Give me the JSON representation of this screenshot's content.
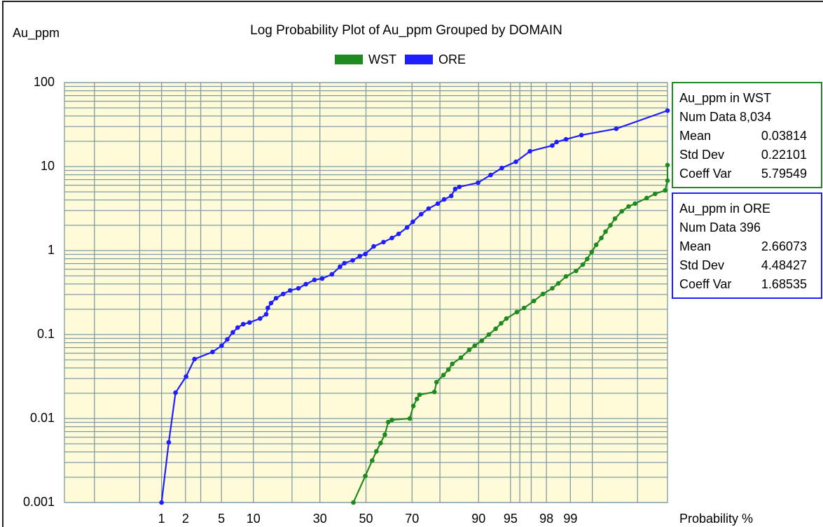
{
  "chart_data": {
    "type": "line",
    "title": "Log Probability Plot of Au_ppm Grouped by DOMAIN",
    "y_label": "Au_ppm",
    "x_label": "Probability %",
    "x_scale": "probability",
    "y_scale": "log",
    "grid": true,
    "legend": "top",
    "plot_background": "#fffbd8",
    "xlim": [
      0.03,
      99.97
    ],
    "ylim": [
      0.001,
      100
    ],
    "xticks": [
      1,
      2,
      5,
      10,
      30,
      50,
      70,
      90,
      95,
      98,
      99
    ],
    "x_grid": [
      0.1,
      0.5,
      1,
      2,
      3,
      5,
      10,
      20,
      30,
      50,
      70,
      80,
      90,
      95,
      96,
      97,
      98,
      99,
      99.5,
      99.9
    ],
    "yticks": [
      0.001,
      0.01,
      0.1,
      1,
      10,
      100
    ],
    "y_minor_grid": [
      0.002,
      0.003,
      0.004,
      0.005,
      0.006,
      0.007,
      0.008,
      0.009,
      0.02,
      0.03,
      0.04,
      0.05,
      0.06,
      0.07,
      0.08,
      0.09,
      0.2,
      0.3,
      0.4,
      0.5,
      0.6,
      0.7,
      0.8,
      0.9,
      2,
      3,
      4,
      5,
      6,
      7,
      8,
      9,
      20,
      30,
      40,
      50,
      60,
      70,
      80,
      90
    ],
    "series": [
      {
        "name": "WST",
        "color": "#1f8a1f",
        "x": [
          44.3,
          49.7,
          52.8,
          54.7,
          56.6,
          58.5,
          60.0,
          61.6,
          69.1,
          70.5,
          71.9,
          72.9,
          78.2,
          78.9,
          81.1,
          82.6,
          83.7,
          86.0,
          88.0,
          89.2,
          90.6,
          91.9,
          93.0,
          93.8,
          94.5,
          95.7,
          96.4,
          97.2,
          97.8,
          98.3,
          98.57,
          98.86,
          99.16,
          99.32,
          99.41,
          99.49,
          99.56,
          99.63,
          99.68,
          99.73,
          99.77,
          99.82,
          99.86,
          99.89,
          99.93,
          99.95,
          99.967,
          99.97,
          99.97
        ],
        "values": [
          0.001,
          0.00207,
          0.00316,
          0.00406,
          0.0051,
          0.00643,
          0.00908,
          0.00962,
          0.01,
          0.0141,
          0.0171,
          0.0192,
          0.0207,
          0.0271,
          0.0329,
          0.0383,
          0.0447,
          0.0531,
          0.0656,
          0.0736,
          0.0841,
          0.1,
          0.117,
          0.136,
          0.155,
          0.185,
          0.207,
          0.251,
          0.304,
          0.355,
          0.406,
          0.492,
          0.573,
          0.681,
          0.794,
          0.962,
          1.17,
          1.41,
          1.68,
          2.0,
          2.4,
          2.93,
          3.35,
          3.62,
          4.22,
          4.73,
          5.21,
          6.81,
          10.4
        ]
      },
      {
        "name": "ORE",
        "color": "#1e1eff",
        "x": [
          1.0,
          1.24,
          1.51,
          2.03,
          2.55,
          4.04,
          5.02,
          5.72,
          6.48,
          7.21,
          8.12,
          9.26,
          11.4,
          12.8,
          13.2,
          14.0,
          15.3,
          17.3,
          19.4,
          22.1,
          24.7,
          27.9,
          30.9,
          34.9,
          38.4,
          40.3,
          44.0,
          47.2,
          49.7,
          53.5,
          57.9,
          61.6,
          64.5,
          68.0,
          70.3,
          73.5,
          76.2,
          79.3,
          81.3,
          83.4,
          84.5,
          85.6,
          89.9,
          92.2,
          93.9,
          95.6,
          96.9,
          98.3,
          98.5,
          98.86,
          99.29,
          99.78,
          99.97
        ],
        "values": [
          0.001,
          0.0052,
          0.0203,
          0.0316,
          0.051,
          0.062,
          0.0736,
          0.0875,
          0.106,
          0.121,
          0.133,
          0.139,
          0.155,
          0.174,
          0.207,
          0.237,
          0.271,
          0.304,
          0.335,
          0.355,
          0.398,
          0.447,
          0.464,
          0.521,
          0.643,
          0.708,
          0.764,
          0.858,
          0.909,
          1.12,
          1.26,
          1.41,
          1.58,
          1.88,
          2.2,
          2.71,
          3.16,
          3.62,
          4.06,
          4.47,
          5.41,
          5.73,
          6.43,
          7.94,
          9.62,
          11.4,
          15.2,
          17.8,
          19.6,
          21.1,
          23.7,
          28.2,
          46.4
        ]
      }
    ]
  },
  "stats_boxes": [
    {
      "title": "Au_ppm in WST",
      "color": "#1f8a1f",
      "rows": [
        [
          "Num Data",
          "8,034"
        ],
        [
          "Mean",
          "0.03814"
        ],
        [
          "Std Dev",
          "0.22101"
        ],
        [
          "Coeff Var",
          "5.79549"
        ]
      ]
    },
    {
      "title": "Au_ppm in ORE",
      "color": "#1e1eff",
      "rows": [
        [
          "Num Data",
          "396"
        ],
        [
          "Mean",
          "2.66073"
        ],
        [
          "Std Dev",
          "4.48427"
        ],
        [
          "Coeff Var",
          "1.68535"
        ]
      ]
    }
  ]
}
